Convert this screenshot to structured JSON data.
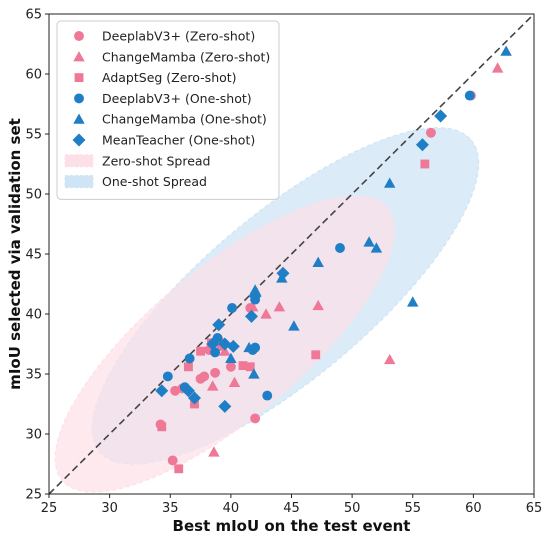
{
  "chart_data": {
    "type": "scatter",
    "xlabel": "Best mIoU on the test event",
    "ylabel": "mIoU selected via validation set",
    "xlim": [
      25,
      65
    ],
    "ylim": [
      25,
      65
    ],
    "x_ticks": [
      "25",
      "30",
      "35",
      "40",
      "45",
      "50",
      "55",
      "60",
      "65"
    ],
    "y_ticks": [
      "25",
      "30",
      "35",
      "40",
      "45",
      "50",
      "55",
      "60",
      "65"
    ],
    "grid": false,
    "diagonal_reference": "dashed y = x",
    "legend_position": "top-left",
    "colors": {
      "zero_shot": "#ee7896",
      "one_shot": "#1f7fc6",
      "zero_spread_fill": "#fde0e7",
      "one_spread_fill": "#cfe4f5"
    },
    "spreads": [
      {
        "name": "Zero-shot Spread",
        "color": "zero_spread_fill",
        "center": [
          39.5,
          37.5
        ],
        "angle_deg": 40,
        "radii": [
          17.5,
          6.2
        ]
      },
      {
        "name": "One-shot Spread",
        "color": "one_spread_fill",
        "center": [
          44.5,
          41.5
        ],
        "angle_deg": 40,
        "radii": [
          20.0,
          6.8
        ]
      }
    ],
    "series": [
      {
        "name": "DeeplabV3+ (Zero-shot)",
        "marker": "circle",
        "color": "zero_shot",
        "points": [
          [
            34.2,
            30.8
          ],
          [
            35.2,
            27.8
          ],
          [
            35.4,
            33.6
          ],
          [
            36.0,
            33.8
          ],
          [
            37.5,
            34.6
          ],
          [
            37.8,
            34.8
          ],
          [
            38.2,
            37.0
          ],
          [
            38.7,
            35.1
          ],
          [
            39.0,
            37.8
          ],
          [
            40.0,
            35.6
          ],
          [
            41.6,
            40.5
          ],
          [
            42.0,
            31.3
          ],
          [
            56.5,
            55.1
          ],
          [
            59.8,
            58.2
          ]
        ]
      },
      {
        "name": "ChangeMamba (Zero-shot)",
        "marker": "triangle",
        "color": "zero_shot",
        "points": [
          [
            38.6,
            28.5
          ],
          [
            38.5,
            34.0
          ],
          [
            39.5,
            36.9
          ],
          [
            40.3,
            34.3
          ],
          [
            41.8,
            40.6
          ],
          [
            42.9,
            40.0
          ],
          [
            44.0,
            40.6
          ],
          [
            47.2,
            40.7
          ],
          [
            53.1,
            36.2
          ],
          [
            62.0,
            60.5
          ]
        ]
      },
      {
        "name": "AdaptSeg (Zero-shot)",
        "marker": "square",
        "color": "zero_shot",
        "points": [
          [
            34.3,
            30.6
          ],
          [
            35.7,
            27.1
          ],
          [
            36.5,
            35.6
          ],
          [
            37.0,
            32.5
          ],
          [
            37.5,
            36.9
          ],
          [
            38.4,
            37.6
          ],
          [
            39.2,
            37.3
          ],
          [
            41.0,
            35.7
          ],
          [
            41.6,
            35.6
          ],
          [
            47.0,
            36.6
          ],
          [
            56.0,
            52.5
          ]
        ]
      },
      {
        "name": "DeeplabV3+ (One-shot)",
        "marker": "circle",
        "color": "one_shot",
        "points": [
          [
            34.8,
            34.8
          ],
          [
            36.2,
            33.9
          ],
          [
            36.6,
            36.3
          ],
          [
            38.7,
            36.8
          ],
          [
            38.9,
            38.0
          ],
          [
            40.1,
            40.5
          ],
          [
            41.8,
            37.0
          ],
          [
            42.0,
            41.2
          ],
          [
            42.0,
            37.2
          ],
          [
            43.0,
            33.2
          ],
          [
            49.0,
            45.5
          ],
          [
            59.7,
            58.2
          ]
        ]
      },
      {
        "name": "ChangeMamba (One-shot)",
        "marker": "triangle",
        "color": "one_shot",
        "points": [
          [
            40.0,
            36.3
          ],
          [
            41.5,
            37.2
          ],
          [
            41.9,
            35.0
          ],
          [
            42.0,
            42.0
          ],
          [
            44.2,
            43.0
          ],
          [
            45.2,
            39.0
          ],
          [
            47.2,
            44.3
          ],
          [
            51.4,
            46.0
          ],
          [
            52.0,
            45.5
          ],
          [
            53.1,
            50.9
          ],
          [
            55.0,
            41.0
          ],
          [
            62.7,
            61.9
          ]
        ]
      },
      {
        "name": "MeanTeacher (One-shot)",
        "marker": "diamond",
        "color": "one_shot",
        "points": [
          [
            34.3,
            33.6
          ],
          [
            36.5,
            33.6
          ],
          [
            37.0,
            33.0
          ],
          [
            38.5,
            37.5
          ],
          [
            39.0,
            39.1
          ],
          [
            39.5,
            32.3
          ],
          [
            39.5,
            37.5
          ],
          [
            40.2,
            37.3
          ],
          [
            41.7,
            39.8
          ],
          [
            42.0,
            41.5
          ],
          [
            44.3,
            43.4
          ],
          [
            55.8,
            54.1
          ],
          [
            57.3,
            56.5
          ]
        ]
      }
    ],
    "legend": [
      {
        "label": "DeeplabV3+ (Zero-shot)",
        "marker": "circle",
        "color": "zero_shot"
      },
      {
        "label": "ChangeMamba (Zero-shot)",
        "marker": "triangle",
        "color": "zero_shot"
      },
      {
        "label": "AdaptSeg (Zero-shot)",
        "marker": "square",
        "color": "zero_shot"
      },
      {
        "label": "DeeplabV3+ (One-shot)",
        "marker": "circle",
        "color": "one_shot"
      },
      {
        "label": "ChangeMamba (One-shot)",
        "marker": "triangle",
        "color": "one_shot"
      },
      {
        "label": "MeanTeacher (One-shot)",
        "marker": "diamond",
        "color": "one_shot"
      },
      {
        "label": "Zero-shot Spread",
        "marker": "patch",
        "color": "zero_spread_fill"
      },
      {
        "label": "One-shot Spread",
        "marker": "patch",
        "color": "one_spread_fill"
      }
    ]
  }
}
